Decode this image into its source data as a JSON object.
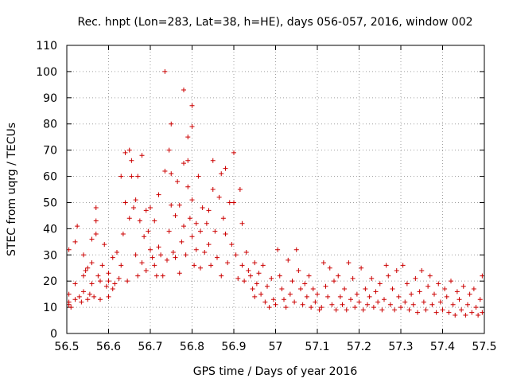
{
  "chart_data": {
    "type": "scatter",
    "title": "Rec. hnpt (Lon=283, Lat=38, h=HE), days 056-057, 2016, window 002",
    "xlabel": "GPS time / Days of year 2016",
    "ylabel": "STEC from uqrg / TECUs",
    "xlim": [
      56.5,
      57.5
    ],
    "ylim": [
      0,
      110
    ],
    "xticks": [
      56.5,
      56.6,
      56.7,
      56.8,
      56.9,
      57.0,
      57.1,
      57.2,
      57.3,
      57.4,
      57.5
    ],
    "xtick_labels": [
      "56.5",
      "56.6",
      "56.7",
      "56.8",
      "56.9",
      "57",
      "57.1",
      "57.2",
      "57.3",
      "57.4",
      "57.5"
    ],
    "yticks": [
      0,
      10,
      20,
      30,
      40,
      50,
      60,
      70,
      80,
      90,
      100,
      110
    ],
    "ytick_labels": [
      "0",
      "10",
      "20",
      "30",
      "40",
      "50",
      "60",
      "70",
      "80",
      "90",
      "100",
      "110"
    ],
    "grid": true,
    "legend": "none",
    "marker": "plus",
    "color": "#cc0000",
    "points": [
      [
        56.505,
        11
      ],
      [
        56.505,
        12
      ],
      [
        56.51,
        10
      ],
      [
        56.505,
        15
      ],
      [
        56.505,
        32
      ],
      [
        56.52,
        19
      ],
      [
        56.52,
        35
      ],
      [
        56.525,
        41
      ],
      [
        56.52,
        13
      ],
      [
        56.53,
        14
      ],
      [
        56.535,
        12
      ],
      [
        56.54,
        16
      ],
      [
        56.54,
        22
      ],
      [
        56.54,
        30
      ],
      [
        56.545,
        24
      ],
      [
        56.55,
        25
      ],
      [
        56.55,
        13
      ],
      [
        56.555,
        15
      ],
      [
        56.56,
        27
      ],
      [
        56.56,
        36
      ],
      [
        56.56,
        19
      ],
      [
        56.565,
        14
      ],
      [
        56.57,
        48
      ],
      [
        56.57,
        43
      ],
      [
        56.57,
        38
      ],
      [
        56.575,
        22
      ],
      [
        56.58,
        20
      ],
      [
        56.58,
        13
      ],
      [
        56.585,
        26
      ],
      [
        56.59,
        34
      ],
      [
        56.595,
        18
      ],
      [
        56.6,
        14
      ],
      [
        56.6,
        20
      ],
      [
        56.6,
        23
      ],
      [
        56.61,
        29
      ],
      [
        56.61,
        17
      ],
      [
        56.615,
        19
      ],
      [
        56.62,
        31
      ],
      [
        56.625,
        21
      ],
      [
        56.63,
        26
      ],
      [
        56.63,
        60
      ],
      [
        56.635,
        38
      ],
      [
        56.64,
        50
      ],
      [
        56.64,
        69
      ],
      [
        56.645,
        20
      ],
      [
        56.65,
        44
      ],
      [
        56.65,
        70
      ],
      [
        56.655,
        60
      ],
      [
        56.655,
        66
      ],
      [
        56.66,
        48
      ],
      [
        56.665,
        51
      ],
      [
        56.665,
        30
      ],
      [
        56.67,
        60
      ],
      [
        56.67,
        22
      ],
      [
        56.675,
        43
      ],
      [
        56.68,
        68
      ],
      [
        56.68,
        27
      ],
      [
        56.685,
        37
      ],
      [
        56.69,
        47
      ],
      [
        56.69,
        24
      ],
      [
        56.695,
        39
      ],
      [
        56.7,
        32
      ],
      [
        56.7,
        48
      ],
      [
        56.705,
        29
      ],
      [
        56.71,
        43
      ],
      [
        56.71,
        26
      ],
      [
        56.715,
        22
      ],
      [
        56.72,
        53
      ],
      [
        56.72,
        33
      ],
      [
        56.725,
        30
      ],
      [
        56.73,
        22
      ],
      [
        56.735,
        100
      ],
      [
        56.735,
        62
      ],
      [
        56.74,
        28
      ],
      [
        56.745,
        70
      ],
      [
        56.745,
        39
      ],
      [
        56.75,
        80
      ],
      [
        56.75,
        61
      ],
      [
        56.75,
        49
      ],
      [
        56.755,
        31
      ],
      [
        56.76,
        45
      ],
      [
        56.76,
        29
      ],
      [
        56.765,
        58
      ],
      [
        56.77,
        49
      ],
      [
        56.77,
        23
      ],
      [
        56.775,
        35
      ],
      [
        56.78,
        93
      ],
      [
        56.78,
        65
      ],
      [
        56.78,
        41
      ],
      [
        56.785,
        30
      ],
      [
        56.79,
        75
      ],
      [
        56.79,
        66
      ],
      [
        56.79,
        56
      ],
      [
        56.795,
        44
      ],
      [
        56.8,
        87
      ],
      [
        56.8,
        79
      ],
      [
        56.8,
        51
      ],
      [
        56.8,
        37
      ],
      [
        56.805,
        26
      ],
      [
        56.81,
        42
      ],
      [
        56.81,
        32
      ],
      [
        56.815,
        60
      ],
      [
        56.82,
        39
      ],
      [
        56.82,
        25
      ],
      [
        56.825,
        48
      ],
      [
        56.83,
        31
      ],
      [
        56.835,
        42
      ],
      [
        56.84,
        47
      ],
      [
        56.84,
        34
      ],
      [
        56.845,
        26
      ],
      [
        56.85,
        66
      ],
      [
        56.85,
        55
      ],
      [
        56.855,
        39
      ],
      [
        56.86,
        29
      ],
      [
        56.865,
        52
      ],
      [
        56.87,
        61
      ],
      [
        56.87,
        22
      ],
      [
        56.875,
        44
      ],
      [
        56.88,
        63
      ],
      [
        56.88,
        38
      ],
      [
        56.885,
        27
      ],
      [
        56.89,
        50
      ],
      [
        56.895,
        34
      ],
      [
        56.9,
        69
      ],
      [
        56.9,
        50
      ],
      [
        56.905,
        30
      ],
      [
        56.91,
        21
      ],
      [
        56.915,
        55
      ],
      [
        56.92,
        42
      ],
      [
        56.92,
        26
      ],
      [
        56.925,
        20
      ],
      [
        56.93,
        31
      ],
      [
        56.935,
        24
      ],
      [
        56.94,
        22
      ],
      [
        56.945,
        17
      ],
      [
        56.95,
        27
      ],
      [
        56.95,
        14
      ],
      [
        56.955,
        19
      ],
      [
        56.96,
        23
      ],
      [
        56.965,
        15
      ],
      [
        56.97,
        26
      ],
      [
        56.975,
        12
      ],
      [
        56.98,
        18
      ],
      [
        56.985,
        10
      ],
      [
        56.99,
        21
      ],
      [
        56.995,
        13
      ],
      [
        57.0,
        11
      ],
      [
        57.005,
        32
      ],
      [
        57.01,
        22
      ],
      [
        57.015,
        17
      ],
      [
        57.02,
        13
      ],
      [
        57.025,
        10
      ],
      [
        57.03,
        28
      ],
      [
        57.035,
        15
      ],
      [
        57.04,
        20
      ],
      [
        57.045,
        12
      ],
      [
        57.05,
        32
      ],
      [
        57.055,
        24
      ],
      [
        57.06,
        17
      ],
      [
        57.065,
        11
      ],
      [
        57.07,
        19
      ],
      [
        57.075,
        14
      ],
      [
        57.08,
        22
      ],
      [
        57.085,
        10
      ],
      [
        57.09,
        17
      ],
      [
        57.095,
        12
      ],
      [
        57.1,
        15
      ],
      [
        57.105,
        9
      ],
      [
        57.11,
        10
      ],
      [
        57.115,
        27
      ],
      [
        57.12,
        18
      ],
      [
        57.125,
        14
      ],
      [
        57.13,
        25
      ],
      [
        57.135,
        11
      ],
      [
        57.14,
        20
      ],
      [
        57.145,
        9
      ],
      [
        57.15,
        22
      ],
      [
        57.155,
        14
      ],
      [
        57.16,
        11
      ],
      [
        57.165,
        17
      ],
      [
        57.17,
        9
      ],
      [
        57.175,
        27
      ],
      [
        57.18,
        13
      ],
      [
        57.185,
        21
      ],
      [
        57.19,
        10
      ],
      [
        57.195,
        15
      ],
      [
        57.2,
        12
      ],
      [
        57.205,
        25
      ],
      [
        57.21,
        9
      ],
      [
        57.215,
        17
      ],
      [
        57.22,
        11
      ],
      [
        57.225,
        14
      ],
      [
        57.23,
        21
      ],
      [
        57.235,
        10
      ],
      [
        57.24,
        16
      ],
      [
        57.245,
        12
      ],
      [
        57.25,
        19
      ],
      [
        57.255,
        9
      ],
      [
        57.26,
        13
      ],
      [
        57.265,
        26
      ],
      [
        57.27,
        22
      ],
      [
        57.275,
        11
      ],
      [
        57.28,
        17
      ],
      [
        57.285,
        9
      ],
      [
        57.29,
        24
      ],
      [
        57.295,
        14
      ],
      [
        57.3,
        10
      ],
      [
        57.305,
        26
      ],
      [
        57.31,
        12
      ],
      [
        57.315,
        19
      ],
      [
        57.32,
        9
      ],
      [
        57.325,
        15
      ],
      [
        57.33,
        11
      ],
      [
        57.335,
        21
      ],
      [
        57.34,
        8
      ],
      [
        57.345,
        16
      ],
      [
        57.35,
        24
      ],
      [
        57.355,
        12
      ],
      [
        57.36,
        9
      ],
      [
        57.365,
        18
      ],
      [
        57.37,
        22
      ],
      [
        57.375,
        11
      ],
      [
        57.38,
        15
      ],
      [
        57.385,
        8
      ],
      [
        57.39,
        19
      ],
      [
        57.395,
        12
      ],
      [
        57.4,
        9
      ],
      [
        57.405,
        17
      ],
      [
        57.41,
        14
      ],
      [
        57.415,
        8
      ],
      [
        57.42,
        20
      ],
      [
        57.425,
        11
      ],
      [
        57.43,
        7
      ],
      [
        57.435,
        16
      ],
      [
        57.44,
        13
      ],
      [
        57.445,
        9
      ],
      [
        57.45,
        18
      ],
      [
        57.455,
        7
      ],
      [
        57.46,
        11
      ],
      [
        57.465,
        15
      ],
      [
        57.47,
        8
      ],
      [
        57.475,
        17
      ],
      [
        57.48,
        10
      ],
      [
        57.485,
        7
      ],
      [
        57.49,
        13
      ],
      [
        57.495,
        22
      ],
      [
        57.495,
        8
      ]
    ]
  }
}
